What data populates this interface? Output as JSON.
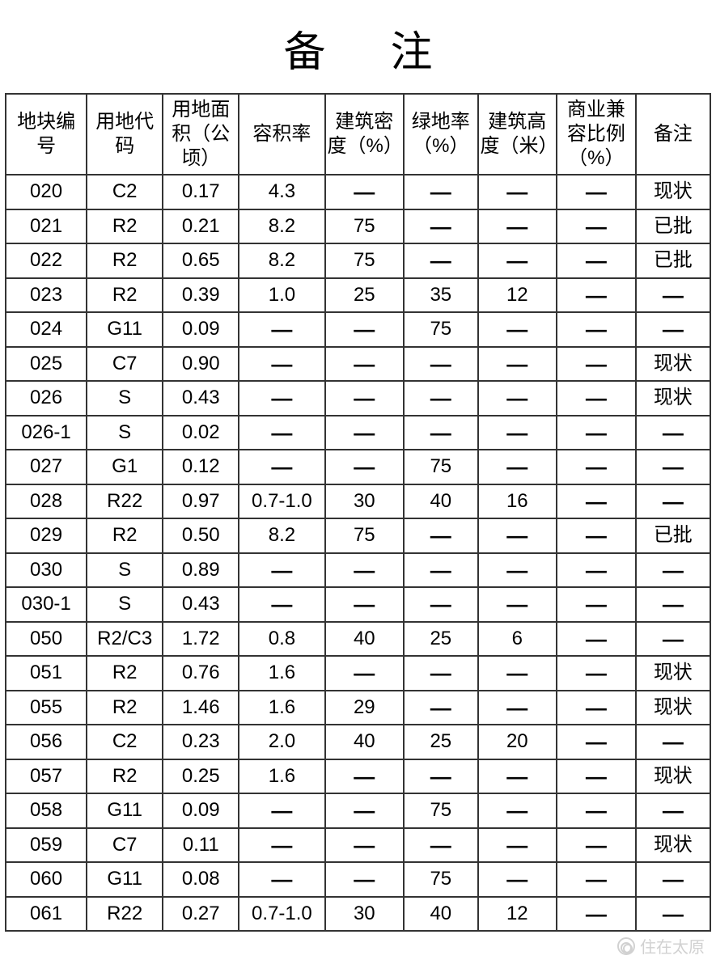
{
  "title": "备注",
  "dash": "—",
  "table": {
    "type": "table",
    "border_color": "#333333",
    "background_color": "#ffffff",
    "text_color": "#000000",
    "header_fontsize": 24,
    "cell_fontsize": 24,
    "column_widths_pct": [
      11.5,
      10.8,
      10.8,
      12.2,
      11.2,
      10.5,
      11.2,
      11.2,
      10.6
    ],
    "columns": [
      "地块编号",
      "用地代码",
      "用地面积（公顷）",
      "容积率",
      "建筑密度（%）",
      "绿地率（%）",
      "建筑高度（米）",
      "商业兼容比例（%）",
      "备注"
    ],
    "rows": [
      [
        "020",
        "C2",
        "0.17",
        "4.3",
        "—",
        "—",
        "—",
        "—",
        "现状"
      ],
      [
        "021",
        "R2",
        "0.21",
        "8.2",
        "75",
        "—",
        "—",
        "—",
        "已批"
      ],
      [
        "022",
        "R2",
        "0.65",
        "8.2",
        "75",
        "—",
        "—",
        "—",
        "已批"
      ],
      [
        "023",
        "R2",
        "0.39",
        "1.0",
        "25",
        "35",
        "12",
        "—",
        "—"
      ],
      [
        "024",
        "G11",
        "0.09",
        "—",
        "—",
        "75",
        "—",
        "—",
        "—"
      ],
      [
        "025",
        "C7",
        "0.90",
        "—",
        "—",
        "—",
        "—",
        "—",
        "现状"
      ],
      [
        "026",
        "S",
        "0.43",
        "—",
        "—",
        "—",
        "—",
        "—",
        "现状"
      ],
      [
        "026-1",
        "S",
        "0.02",
        "—",
        "—",
        "—",
        "—",
        "—",
        "—"
      ],
      [
        "027",
        "G1",
        "0.12",
        "—",
        "—",
        "75",
        "—",
        "—",
        "—"
      ],
      [
        "028",
        "R22",
        "0.97",
        "0.7-1.0",
        "30",
        "40",
        "16",
        "—",
        "—"
      ],
      [
        "029",
        "R2",
        "0.50",
        "8.2",
        "75",
        "—",
        "—",
        "—",
        "已批"
      ],
      [
        "030",
        "S",
        "0.89",
        "—",
        "—",
        "—",
        "—",
        "—",
        "—"
      ],
      [
        "030-1",
        "S",
        "0.43",
        "—",
        "—",
        "—",
        "—",
        "—",
        "—"
      ],
      [
        "050",
        "R2/C3",
        "1.72",
        "0.8",
        "40",
        "25",
        "6",
        "—",
        "—"
      ],
      [
        "051",
        "R2",
        "0.76",
        "1.6",
        "—",
        "—",
        "—",
        "—",
        "现状"
      ],
      [
        "055",
        "R2",
        "1.46",
        "1.6",
        "29",
        "—",
        "—",
        "—",
        "现状"
      ],
      [
        "056",
        "C2",
        "0.23",
        "2.0",
        "40",
        "25",
        "20",
        "—",
        "—"
      ],
      [
        "057",
        "R2",
        "0.25",
        "1.6",
        "—",
        "—",
        "—",
        "—",
        "现状"
      ],
      [
        "058",
        "G11",
        "0.09",
        "—",
        "—",
        "75",
        "—",
        "—",
        "—"
      ],
      [
        "059",
        "C7",
        "0.11",
        "—",
        "—",
        "—",
        "—",
        "—",
        "现状"
      ],
      [
        "060",
        "G11",
        "0.08",
        "—",
        "—",
        "75",
        "—",
        "—",
        "—"
      ],
      [
        "061",
        "R22",
        "0.27",
        "0.7-1.0",
        "30",
        "40",
        "12",
        "—",
        "—"
      ]
    ]
  },
  "watermark": {
    "text": "住在太原",
    "color": "#c9c9c9",
    "fontsize": 20
  }
}
